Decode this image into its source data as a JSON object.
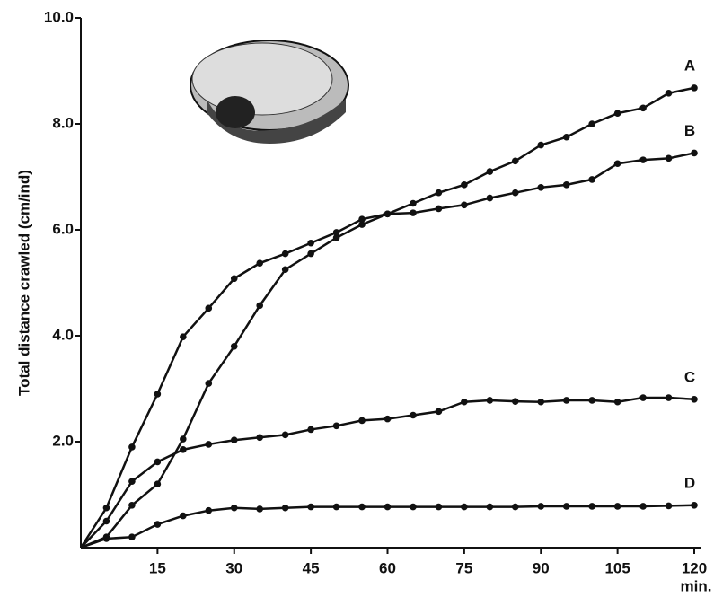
{
  "chart_data": {
    "type": "line",
    "y_label": "Total distance crawled (cm/ind)",
    "x_label": "min.",
    "x": [
      0,
      5,
      10,
      15,
      20,
      25,
      30,
      35,
      40,
      45,
      50,
      55,
      60,
      65,
      70,
      75,
      80,
      85,
      90,
      95,
      100,
      105,
      110,
      115,
      120
    ],
    "series": [
      {
        "name": "A",
        "color": "#111111",
        "values": [
          0,
          0.2,
          0.8,
          1.2,
          2.05,
          3.1,
          3.8,
          4.57,
          5.25,
          5.55,
          5.85,
          6.1,
          6.3,
          6.5,
          6.7,
          6.85,
          7.1,
          7.3,
          7.6,
          7.75,
          8.0,
          8.2,
          8.3,
          8.58,
          8.68
        ]
      },
      {
        "name": "B",
        "color": "#111111",
        "values": [
          0,
          0.75,
          1.9,
          2.9,
          3.98,
          4.52,
          5.08,
          5.37,
          5.55,
          5.75,
          5.95,
          6.2,
          6.3,
          6.32,
          6.4,
          6.47,
          6.6,
          6.7,
          6.8,
          6.85,
          6.95,
          7.25,
          7.32,
          7.35,
          7.45
        ]
      },
      {
        "name": "C",
        "color": "#111111",
        "values": [
          0,
          0.5,
          1.25,
          1.62,
          1.85,
          1.95,
          2.03,
          2.08,
          2.13,
          2.23,
          2.3,
          2.4,
          2.43,
          2.5,
          2.57,
          2.75,
          2.78,
          2.76,
          2.75,
          2.78,
          2.78,
          2.75,
          2.83,
          2.83,
          2.8
        ]
      },
      {
        "name": "D",
        "color": "#111111",
        "values": [
          0,
          0.17,
          0.2,
          0.44,
          0.6,
          0.7,
          0.75,
          0.73,
          0.75,
          0.77,
          0.77,
          0.77,
          0.77,
          0.77,
          0.77,
          0.77,
          0.77,
          0.77,
          0.78,
          0.78,
          0.78,
          0.78,
          0.78,
          0.79,
          0.8
        ]
      }
    ],
    "xlim": [
      0,
      120
    ],
    "xticks": [
      15,
      30,
      45,
      60,
      75,
      90,
      105,
      120
    ],
    "ylim": [
      0,
      10
    ],
    "yticks": [
      {
        "value": 2,
        "label": "2.0"
      },
      {
        "value": 4,
        "label": "4.0"
      },
      {
        "value": 6,
        "label": "6.0"
      },
      {
        "value": 8,
        "label": "8.0"
      },
      {
        "value": 10,
        "label": "10.0"
      }
    ]
  }
}
